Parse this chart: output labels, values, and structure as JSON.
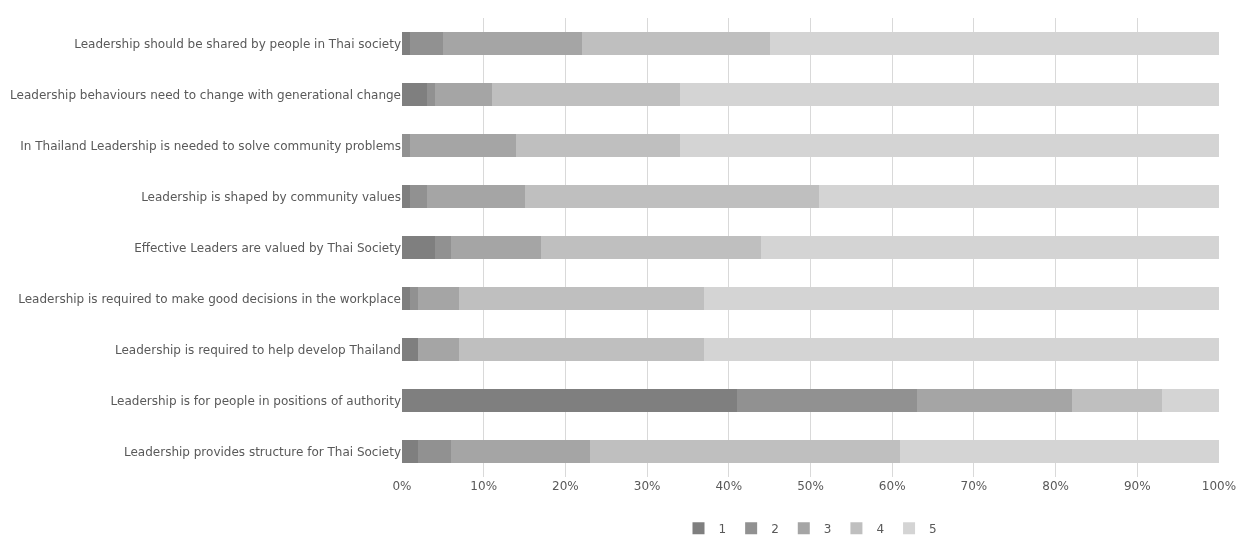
{
  "chart_data": {
    "type": "bar",
    "orientation": "horizontal",
    "stacked": true,
    "categories": [
      "Leadership should be shared by people in Thai society",
      "Leadership behaviours need to change with generational change",
      "In Thailand Leadership is needed to solve community problems",
      "Leadership is shaped by community values",
      "Effective Leaders are valued by Thai Society",
      "Leadership is required to make good decisions in the workplace",
      "Leadership is required to help develop Thailand",
      "Leadership is for people in positions of authority",
      "Leadership provides structure for Thai Society"
    ],
    "series": [
      {
        "name": "1",
        "color": "#7f7f7f",
        "values": [
          1,
          3,
          0,
          1,
          4,
          1,
          2,
          41,
          2
        ]
      },
      {
        "name": "2",
        "color": "#919191",
        "values": [
          4,
          1,
          1,
          2,
          2,
          1,
          0,
          22,
          4
        ]
      },
      {
        "name": "3",
        "color": "#a5a5a5",
        "values": [
          17,
          7,
          13,
          12,
          11,
          5,
          5,
          19,
          17
        ]
      },
      {
        "name": "4",
        "color": "#bfbfbf",
        "values": [
          23,
          23,
          20,
          36,
          27,
          30,
          30,
          11,
          38
        ]
      },
      {
        "name": "5",
        "color": "#d4d4d4",
        "values": [
          55,
          66,
          66,
          49,
          56,
          63,
          63,
          7,
          39
        ]
      }
    ],
    "xlim": [
      0,
      100
    ],
    "xticks": [
      {
        "value": 0,
        "label": "0%"
      },
      {
        "value": 10,
        "label": "10%"
      },
      {
        "value": 20,
        "label": "20%"
      },
      {
        "value": 30,
        "label": "30%"
      },
      {
        "value": 40,
        "label": "40%"
      },
      {
        "value": 50,
        "label": "50%"
      },
      {
        "value": 60,
        "label": "60%"
      },
      {
        "value": 70,
        "label": "70%"
      },
      {
        "value": 80,
        "label": "80%"
      },
      {
        "value": 90,
        "label": "90%"
      },
      {
        "value": 100,
        "label": "100%"
      }
    ],
    "grid": "x",
    "legend": "bottom"
  }
}
